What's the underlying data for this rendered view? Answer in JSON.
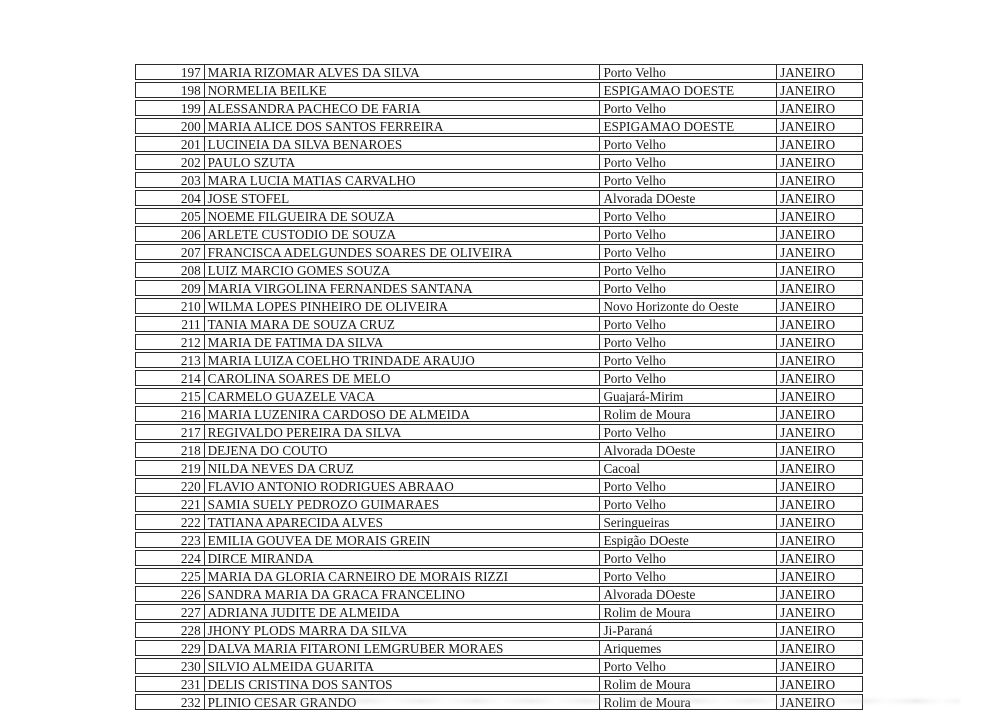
{
  "colors": {
    "page_background": "#ffffff",
    "border": "#2b2b2b",
    "text": "#1a1a1a"
  },
  "table": {
    "columns": [
      "number",
      "name",
      "city",
      "month"
    ],
    "rows": [
      {
        "number": "197",
        "name": "MARIA RIZOMAR ALVES DA SILVA",
        "city": "Porto Velho",
        "month": "JANEIRO"
      },
      {
        "number": "198",
        "name": "NORMELIA BEILKE",
        "city": "ESPIGAMAO DOESTE",
        "month": "JANEIRO"
      },
      {
        "number": "199",
        "name": "ALESSANDRA PACHECO DE FARIA",
        "city": "Porto Velho",
        "month": "JANEIRO"
      },
      {
        "number": "200",
        "name": "MARIA ALICE DOS SANTOS FERREIRA",
        "city": "ESPIGAMAO DOESTE",
        "month": "JANEIRO"
      },
      {
        "number": "201",
        "name": "LUCINEIA DA SILVA BENAROES",
        "city": "Porto Velho",
        "month": "JANEIRO"
      },
      {
        "number": "202",
        "name": "PAULO SZUTA",
        "city": "Porto Velho",
        "month": "JANEIRO"
      },
      {
        "number": "203",
        "name": "MARA LUCIA MATIAS CARVALHO",
        "city": "Porto Velho",
        "month": "JANEIRO"
      },
      {
        "number": "204",
        "name": "JOSE STOFEL",
        "city": "Alvorada DOeste",
        "month": "JANEIRO"
      },
      {
        "number": "205",
        "name": "NOEME FILGUEIRA DE SOUZA",
        "city": "Porto Velho",
        "month": "JANEIRO"
      },
      {
        "number": "206",
        "name": "ARLETE CUSTODIO DE SOUZA",
        "city": "Porto Velho",
        "month": "JANEIRO"
      },
      {
        "number": "207",
        "name": "FRANCISCA ADELGUNDES SOARES DE OLIVEIRA",
        "city": "Porto Velho",
        "month": "JANEIRO"
      },
      {
        "number": "208",
        "name": "LUIZ MARCIO GOMES SOUZA",
        "city": "Porto Velho",
        "month": "JANEIRO"
      },
      {
        "number": "209",
        "name": "MARIA VIRGOLINA FERNANDES SANTANA",
        "city": "Porto Velho",
        "month": "JANEIRO"
      },
      {
        "number": "210",
        "name": "WILMA LOPES PINHEIRO DE OLIVEIRA",
        "city": "Novo Horizonte do Oeste",
        "month": "JANEIRO"
      },
      {
        "number": "211",
        "name": "TANIA MARA DE SOUZA CRUZ",
        "city": "Porto Velho",
        "month": "JANEIRO"
      },
      {
        "number": "212",
        "name": "MARIA DE FATIMA DA SILVA",
        "city": "Porto Velho",
        "month": "JANEIRO"
      },
      {
        "number": "213",
        "name": "MARIA LUIZA COELHO TRINDADE ARAUJO",
        "city": "Porto Velho",
        "month": "JANEIRO"
      },
      {
        "number": "214",
        "name": "CAROLINA SOARES DE MELO",
        "city": "Porto Velho",
        "month": "JANEIRO"
      },
      {
        "number": "215",
        "name": "CARMELO GUAZELE VACA",
        "city": "Guajará-Mirim",
        "month": "JANEIRO"
      },
      {
        "number": "216",
        "name": "MARIA LUZENIRA CARDOSO DE ALMEIDA",
        "city": "Rolim de Moura",
        "month": "JANEIRO"
      },
      {
        "number": "217",
        "name": "REGIVALDO PEREIRA DA SILVA",
        "city": "Porto Velho",
        "month": "JANEIRO"
      },
      {
        "number": "218",
        "name": "DEJENA DO COUTO",
        "city": "Alvorada DOeste",
        "month": "JANEIRO"
      },
      {
        "number": "219",
        "name": "NILDA NEVES DA CRUZ",
        "city": "Cacoal",
        "month": "JANEIRO"
      },
      {
        "number": "220",
        "name": "FLAVIO ANTONIO RODRIGUES ABRAAO",
        "city": "Porto Velho",
        "month": "JANEIRO"
      },
      {
        "number": "221",
        "name": "SAMIA SUELY PEDROZO GUIMARAES",
        "city": "Porto Velho",
        "month": "JANEIRO"
      },
      {
        "number": "222",
        "name": "TATIANA APARECIDA ALVES",
        "city": "Seringueiras",
        "month": "JANEIRO"
      },
      {
        "number": "223",
        "name": "EMILIA GOUVEA DE MORAIS GREIN",
        "city": "Espigão DOeste",
        "month": "JANEIRO"
      },
      {
        "number": "224",
        "name": "DIRCE MIRANDA",
        "city": "Porto Velho",
        "month": "JANEIRO"
      },
      {
        "number": "225",
        "name": "MARIA DA GLORIA CARNEIRO DE MORAIS RIZZI",
        "city": "Porto Velho",
        "month": "JANEIRO"
      },
      {
        "number": "226",
        "name": "SANDRA MARIA DA GRACA FRANCELINO",
        "city": "Alvorada DOeste",
        "month": "JANEIRO"
      },
      {
        "number": "227",
        "name": "ADRIANA JUDITE DE ALMEIDA",
        "city": "Rolim de Moura",
        "month": "JANEIRO"
      },
      {
        "number": "228",
        "name": "JHONY PLODS MARRA DA SILVA",
        "city": "Ji-Paraná",
        "month": "JANEIRO"
      },
      {
        "number": "229",
        "name": "DALVA MARIA FITARONI LEMGRUBER MORAES",
        "city": "Ariquemes",
        "month": "JANEIRO"
      },
      {
        "number": "230",
        "name": "SILVIO ALMEIDA GUARITA",
        "city": "Porto Velho",
        "month": "JANEIRO"
      },
      {
        "number": "231",
        "name": "DELIS CRISTINA DOS SANTOS",
        "city": "Rolim de Moura",
        "month": "JANEIRO"
      },
      {
        "number": "232",
        "name": "PLINIO CESAR GRANDO",
        "city": "Rolim de Moura",
        "month": "JANEIRO"
      }
    ]
  }
}
